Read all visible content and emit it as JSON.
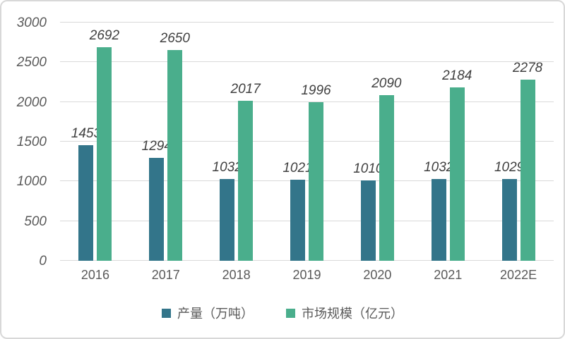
{
  "chart_data": {
    "type": "bar",
    "title": "",
    "xlabel": "",
    "ylabel": "",
    "categories": [
      "2016",
      "2017",
      "2018",
      "2019",
      "2020",
      "2021",
      "2022E"
    ],
    "series": [
      {
        "name": "产量（万吨）",
        "color": "#33758a",
        "values": [
          1453,
          1294,
          1032,
          1021,
          1010,
          1032,
          1029
        ]
      },
      {
        "name": "市场规模（亿元）",
        "color": "#4aae8c",
        "values": [
          2692,
          2650,
          2017,
          1996,
          2090,
          2184,
          2278
        ]
      }
    ],
    "yticks": [
      0,
      500,
      1000,
      1500,
      2000,
      2500,
      3000
    ],
    "ylim": [
      0,
      3000
    ],
    "grid": true,
    "data_labels": true,
    "legend_position": "bottom"
  },
  "palette": {
    "tick_label": "#595959",
    "data_label": "#404040",
    "gridline": "#d9d9d9",
    "card_border": "#d8d8d8",
    "background": "#ffffff"
  }
}
